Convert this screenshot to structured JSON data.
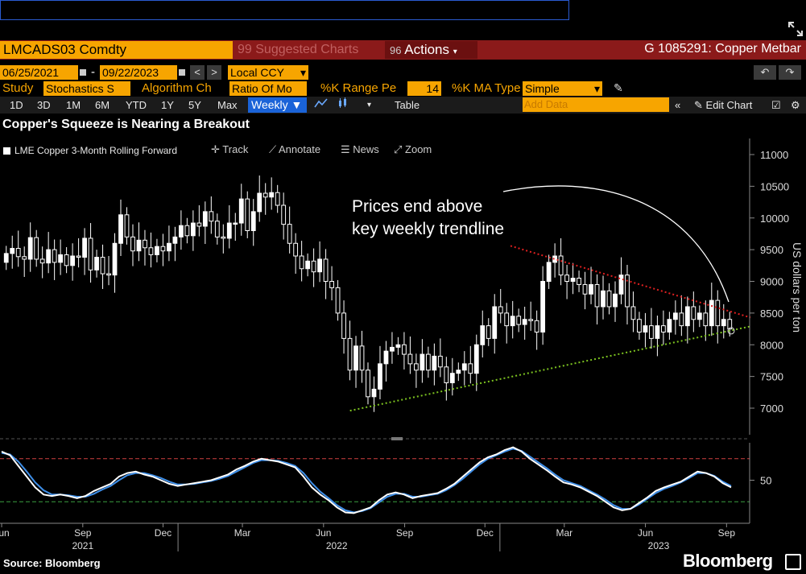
{
  "header": {
    "ticker": "LMCADS03 Comdty",
    "suggested_charts": "Suggested Charts",
    "suggested_prefix": "99",
    "actions": "Actions",
    "actions_prefix": "96",
    "security_name": "G 1085291: Copper Metbar"
  },
  "controls": {
    "start_date": "06/25/2021",
    "end_date": "09/22/2023",
    "date_sep": "-",
    "currency": "Local CCY",
    "study_label": "Study",
    "study_value": "Stochastics S",
    "algorithm_label": "Algorithm Ch",
    "algorithm_value": "Ratio Of Mo",
    "k_range_label": "%K Range Pe",
    "k_range_value": "14",
    "k_ma_label": "%K MA Type",
    "k_ma_value": "Simple",
    "add_data_placeholder": "Add Data",
    "edit_chart": "Edit Chart",
    "table": "Table"
  },
  "periods": [
    "1D",
    "3D",
    "1M",
    "6M",
    "YTD",
    "1Y",
    "5Y",
    "Max"
  ],
  "frequency": "Weekly",
  "chart_tools": {
    "track": "Track",
    "annotate": "Annotate",
    "news": "News",
    "zoom": "Zoom"
  },
  "colors": {
    "accent_orange": "#f7a500",
    "header_red": "#8b1a1a",
    "resistance_line": "#e02020",
    "support_line": "#7dc420",
    "k_line": "#ffffff",
    "d_line": "#3d8ee8",
    "bull_candle": "#ffffff",
    "bear_candle": "#ffffff"
  },
  "chart_data": [
    {
      "type": "candlestick",
      "title": "Copper's Squeeze is Nearing a Breakout",
      "legend": "LME Copper 3-Month Rolling Forward",
      "ylabel": "US dollars per ton",
      "ylim": [
        6500,
        11200
      ],
      "yticks": [
        7000,
        7500,
        8000,
        8500,
        9000,
        9500,
        10000,
        10500,
        11000
      ],
      "annotation": [
        "Prices end above",
        "key weekly trendline"
      ],
      "xlim": [
        "2021-06-25",
        "2023-09-22"
      ],
      "support_trendline": [
        {
          "x": "2022-07-15",
          "y": 6960
        },
        {
          "x": "2023-09-22",
          "y": 8290
        }
      ],
      "resistance_trendline": [
        {
          "x": "2023-01-13",
          "y": 9560
        },
        {
          "x": "2023-09-22",
          "y": 8430
        }
      ],
      "weekly_close": [
        9440,
        9520,
        9390,
        9350,
        9690,
        9350,
        9290,
        9500,
        9300,
        9420,
        9250,
        9400,
        9380,
        9680,
        9180,
        9380,
        9120,
        9100,
        9600,
        10050,
        9700,
        9480,
        9650,
        9530,
        9420,
        9550,
        9480,
        9600,
        9700,
        9880,
        9720,
        9920,
        9870,
        10100,
        9950,
        9700,
        9680,
        9920,
        9920,
        10300,
        9800,
        10100,
        10390,
        10330,
        10400,
        10200,
        9900,
        9600,
        9400,
        9200,
        9320,
        9150,
        9350,
        9000,
        8900,
        8500,
        8100,
        7600,
        7980,
        7600,
        7180,
        7300,
        7700,
        7900,
        7960,
        8000,
        7850,
        7700,
        7600,
        7850,
        7600,
        7820,
        7650,
        7400,
        7550,
        7600,
        7700,
        7550,
        8000,
        8300,
        8100,
        8600,
        8500,
        8300,
        8450,
        8320,
        8400,
        8380,
        8200,
        9000,
        9300,
        9400,
        9100,
        9000,
        9050,
        8950,
        8800,
        8950,
        8600,
        8850,
        8600,
        8800,
        9100,
        8600,
        8400,
        8200,
        8300,
        8100,
        8300,
        8200,
        8400,
        8500,
        8300,
        8600,
        8400,
        8500,
        8300,
        8700,
        8300,
        8400,
        8250
      ],
      "x_axis_labels": [
        {
          "label": "Jun",
          "date": "2021-06-15"
        },
        {
          "label": "Sep",
          "date": "2021-09-15"
        },
        {
          "label": "Dec",
          "date": "2021-12-15"
        },
        {
          "label": "Mar",
          "date": "2022-03-15"
        },
        {
          "label": "Jun",
          "date": "2022-06-15"
        },
        {
          "label": "Sep",
          "date": "2022-09-15"
        },
        {
          "label": "Dec",
          "date": "2022-12-15"
        },
        {
          "label": "Mar",
          "date": "2023-03-15"
        },
        {
          "label": "Jun",
          "date": "2023-06-15"
        },
        {
          "label": "Sep",
          "date": "2023-09-15"
        }
      ],
      "year_labels": [
        {
          "label": "2021",
          "date": "2021-09-15"
        },
        {
          "label": "2022",
          "date": "2022-06-30"
        },
        {
          "label": "2023",
          "date": "2023-06-30"
        }
      ]
    },
    {
      "type": "line",
      "ylim": [
        0,
        100
      ],
      "yticks": [
        50
      ],
      "reference_lines": [
        80,
        20
      ],
      "series": [
        {
          "id": "k",
          "values": [
            90,
            85,
            70,
            55,
            40,
            30,
            28,
            30,
            28,
            25,
            28,
            35,
            40,
            45,
            55,
            60,
            62,
            58,
            55,
            50,
            45,
            42,
            44,
            46,
            48,
            50,
            54,
            58,
            65,
            70,
            76,
            80,
            78,
            76,
            72,
            68,
            55,
            40,
            30,
            22,
            12,
            5,
            4,
            8,
            12,
            22,
            30,
            33,
            30,
            25,
            28,
            30,
            32,
            38,
            45,
            55,
            65,
            75,
            82,
            86,
            92,
            96,
            90,
            80,
            72,
            64,
            55,
            47,
            44,
            40,
            34,
            28,
            20,
            12,
            8,
            10,
            18,
            26,
            35,
            40,
            44,
            48,
            55,
            62,
            60,
            55,
            46,
            40
          ]
        },
        {
          "id": "d",
          "values": [
            88,
            86,
            76,
            62,
            47,
            36,
            30,
            30,
            29,
            27,
            27,
            31,
            37,
            42,
            50,
            57,
            60,
            60,
            57,
            53,
            48,
            44,
            44,
            45,
            47,
            49,
            52,
            56,
            62,
            68,
            74,
            78,
            78,
            77,
            74,
            70,
            60,
            46,
            34,
            25,
            15,
            8,
            5,
            7,
            11,
            19,
            27,
            31,
            31,
            27,
            27,
            29,
            31,
            36,
            43,
            52,
            62,
            72,
            80,
            85,
            90,
            94,
            91,
            83,
            75,
            67,
            58,
            50,
            46,
            42,
            36,
            30,
            23,
            15,
            10,
            10,
            16,
            24,
            32,
            38,
            42,
            47,
            53,
            60,
            60,
            56,
            48,
            42
          ]
        }
      ]
    }
  ],
  "footer": {
    "source": "Source: Bloomberg",
    "brand": "Bloomberg"
  }
}
